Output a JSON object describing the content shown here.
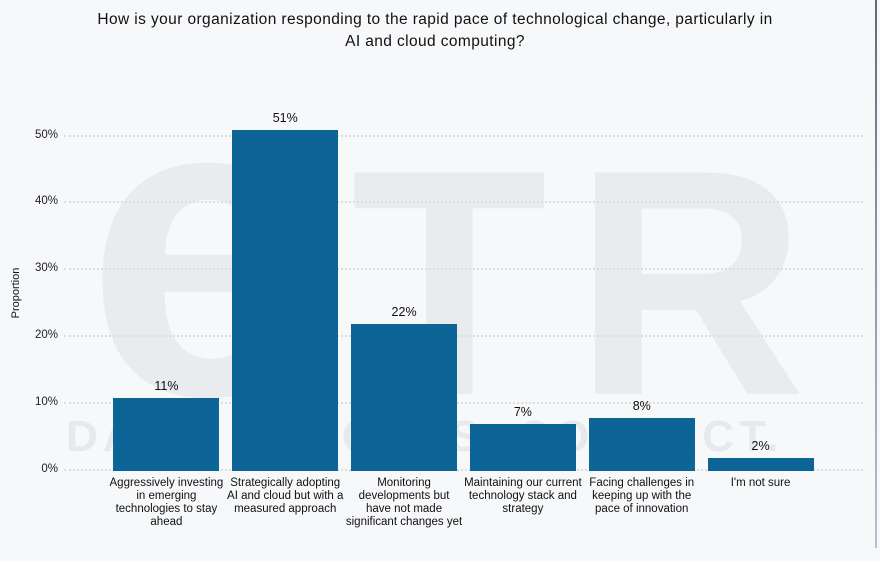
{
  "title": {
    "line1": "How is your organization responding to the rapid pace of technological change, particularly in",
    "line2": "AI and cloud computing?"
  },
  "watermark": {
    "logo_e": "e",
    "logo_tr": "TR",
    "tagline": "DATA. INSIGHTS. CONNECT."
  },
  "chart_data": {
    "type": "bar",
    "title": "How is your organization responding to the rapid pace of technological change, particularly in AI and cloud computing?",
    "xlabel": "",
    "ylabel": "Proportion",
    "ylim": [
      0,
      55
    ],
    "grid": "horizontal-dotted",
    "legend": "none",
    "bar_color": "#0d6496",
    "background_color": "#f7f8fa",
    "yticks": [
      {
        "value": 0,
        "label": "0%"
      },
      {
        "value": 10,
        "label": "10%"
      },
      {
        "value": 20,
        "label": "20%"
      },
      {
        "value": 30,
        "label": "30%"
      },
      {
        "value": 40,
        "label": "40%"
      },
      {
        "value": 50,
        "label": "50%"
      }
    ],
    "categories": [
      "Aggressively investing in emerging technologies to stay ahead",
      "Strategically adopting AI and cloud but with a measured approach",
      "Monitoring developments but have not made significant changes yet",
      "Maintaining our current technology stack and strategy",
      "Facing challenges in keeping up with the pace of innovation",
      "I'm not sure"
    ],
    "values": [
      11,
      51,
      22,
      7,
      8,
      2
    ],
    "value_labels": [
      "11%",
      "51%",
      "22%",
      "7%",
      "8%",
      "2%"
    ]
  }
}
